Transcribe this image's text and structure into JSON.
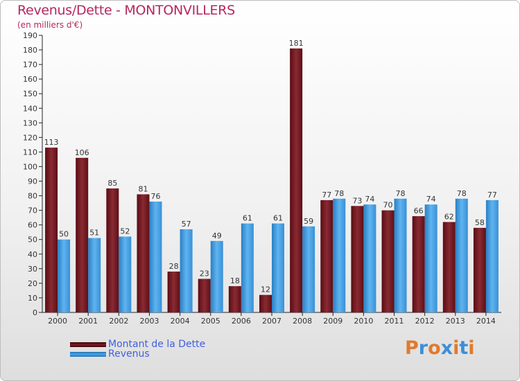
{
  "chart_data": {
    "type": "bar",
    "title": "Revenus/Dette - MONTONVILLERS",
    "subtitle": "(en milliers d'€)",
    "categories": [
      "2000",
      "2001",
      "2002",
      "2003",
      "2004",
      "2005",
      "2006",
      "2007",
      "2008",
      "2009",
      "2010",
      "2011",
      "2012",
      "2013",
      "2014"
    ],
    "series": [
      {
        "name": "Montant de la Dette",
        "color": "#7a1c25",
        "values": [
          113,
          106,
          85,
          81,
          28,
          23,
          18,
          12,
          181,
          77,
          73,
          70,
          66,
          62,
          58
        ]
      },
      {
        "name": "Revenus",
        "color": "#3d9be0",
        "values": [
          50,
          51,
          52,
          76,
          57,
          49,
          61,
          61,
          59,
          78,
          74,
          78,
          74,
          78,
          77
        ]
      }
    ],
    "ylim": [
      0,
      190
    ],
    "yticks": [
      0,
      10,
      20,
      30,
      40,
      50,
      60,
      70,
      80,
      90,
      100,
      110,
      120,
      130,
      140,
      150,
      160,
      170,
      180,
      190
    ],
    "grid": false,
    "legend_position": "bottom-left"
  },
  "logo": {
    "text": "Proxiti",
    "colors": [
      "#e07a2e",
      "#3b8fd8",
      "#e07a2e",
      "#3b8fd8",
      "#e07a2e",
      "#3b8fd8",
      "#e07a2e"
    ]
  }
}
